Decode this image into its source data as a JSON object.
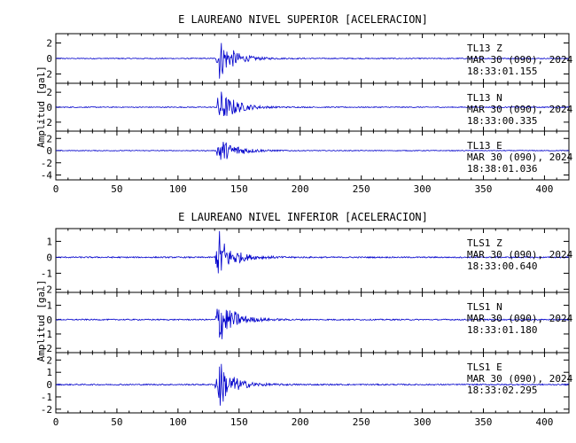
{
  "chart_data": [
    {
      "type": "line",
      "title": "E LAUREANO NIVEL SUPERIOR [ACELERACION]",
      "ylabel": "Amplitud [gal]",
      "xlim": [
        0,
        420
      ],
      "xticks": [
        0,
        50,
        100,
        150,
        200,
        250,
        300,
        350,
        400
      ],
      "line_color": "#0000cc",
      "channels": [
        {
          "yticks": [
            2,
            0,
            -2
          ],
          "ylim": [
            -3.2,
            3.2
          ],
          "station": "TL13   Z",
          "date": "MAR 30 (090), 2024",
          "time": "18:33:01.155",
          "event_start": 131,
          "peak_time": 134,
          "peak_amp": 2.9,
          "noise": 0.06,
          "decay": 8
        },
        {
          "yticks": [
            2,
            0,
            -2
          ],
          "ylim": [
            -3.2,
            3.2
          ],
          "station": "TL13   N",
          "date": "MAR 30 (090), 2024",
          "time": "18:33:00.335",
          "event_start": 131,
          "peak_time": 134,
          "peak_amp": 2.6,
          "noise": 0.06,
          "decay": 9
        },
        {
          "yticks": [
            2,
            0,
            -2,
            -4
          ],
          "ylim": [
            -4.8,
            3.2
          ],
          "station": "TL13   E",
          "date": "MAR 30 (090), 2024",
          "time": "18:38:01.036",
          "event_start": 131,
          "peak_time": 134,
          "peak_amp": 2.4,
          "noise": 0.06,
          "decay": 10
        }
      ]
    },
    {
      "type": "line",
      "title": "E LAUREANO NIVEL INFERIOR [ACELERACION]",
      "ylabel": "Amplitud [gal]",
      "xlim": [
        0,
        420
      ],
      "xticks": [
        0,
        50,
        100,
        150,
        200,
        250,
        300,
        350,
        400
      ],
      "line_color": "#0000cc",
      "channels": [
        {
          "yticks": [
            1,
            0,
            -1,
            -2
          ],
          "ylim": [
            -2.2,
            1.8
          ],
          "station": "TLS1   Z",
          "date": "MAR 30 (090), 2024",
          "time": "18:33:00.640",
          "event_start": 130,
          "peak_time": 134,
          "peak_amp": 1.7,
          "noise": 0.04,
          "decay": 7
        },
        {
          "yticks": [
            1,
            0,
            -1,
            -2
          ],
          "ylim": [
            -2.3,
            1.9
          ],
          "station": "TLS1   N",
          "date": "MAR 30 (090), 2024",
          "time": "18:33:01.180",
          "event_start": 130,
          "peak_time": 134,
          "peak_amp": 1.8,
          "noise": 0.04,
          "decay": 8
        },
        {
          "yticks": [
            2,
            1,
            0,
            -1,
            -2
          ],
          "ylim": [
            -2.3,
            2.6
          ],
          "station": "TLS1   E",
          "date": "MAR 30 (090), 2024",
          "time": "18:33:02.295",
          "event_start": 130,
          "peak_time": 134,
          "peak_amp": 2.2,
          "noise": 0.05,
          "decay": 7
        }
      ]
    }
  ]
}
